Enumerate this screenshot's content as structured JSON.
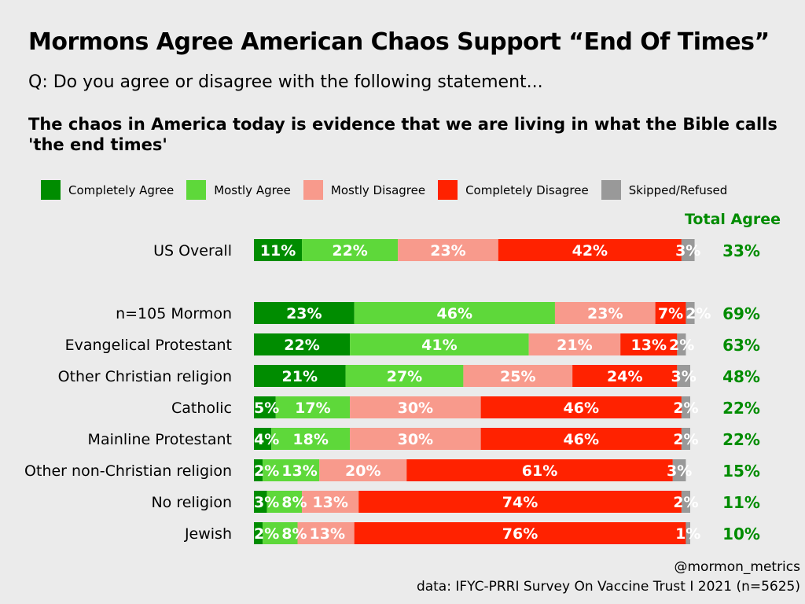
{
  "title": "Mormons Agree American Chaos Support “End Of Times”",
  "subtitle": "Q: Do you agree or disagree with the following statement...",
  "question": "The chaos in America today is evidence that we are living in what the Bible calls 'the end times'",
  "credit_handle": "@mormon_metrics",
  "credit_source": "data: IFYC-PRRI Survey On Vaccine Trust I 2021 (n=5625)",
  "chart_data": {
    "type": "bar",
    "orientation": "horizontal-stacked",
    "title": "Mormons Agree American Chaos Support “End Of Times”",
    "total_header": "Total Agree",
    "series": [
      {
        "name": "Completely Agree",
        "color": "#008c00"
      },
      {
        "name": "Mostly Agree",
        "color": "#5ed83a"
      },
      {
        "name": "Mostly Disagree",
        "color": "#f89a8c"
      },
      {
        "name": "Completely Disagree",
        "color": "#ff2200"
      },
      {
        "name": "Skipped/Refused",
        "color": "#999999"
      }
    ],
    "categories": [
      "US Overall",
      "n=105 Mormon",
      "Evangelical Protestant",
      "Other Christian religion",
      "Catholic",
      "Mainline Protestant",
      "Other non-Christian religion",
      "No religion",
      "Jewish"
    ],
    "values": [
      [
        11,
        22,
        23,
        42,
        3
      ],
      [
        23,
        46,
        23,
        7,
        2
      ],
      [
        22,
        41,
        21,
        13,
        2
      ],
      [
        21,
        27,
        25,
        24,
        3
      ],
      [
        5,
        17,
        30,
        46,
        2
      ],
      [
        4,
        18,
        30,
        46,
        2
      ],
      [
        2,
        13,
        20,
        61,
        3
      ],
      [
        3,
        8,
        13,
        74,
        2
      ],
      [
        2,
        8,
        13,
        76,
        1
      ]
    ],
    "total_agree": [
      33,
      69,
      63,
      48,
      22,
      22,
      15,
      11,
      10
    ],
    "xlim": [
      0,
      100
    ],
    "legend": "top"
  }
}
